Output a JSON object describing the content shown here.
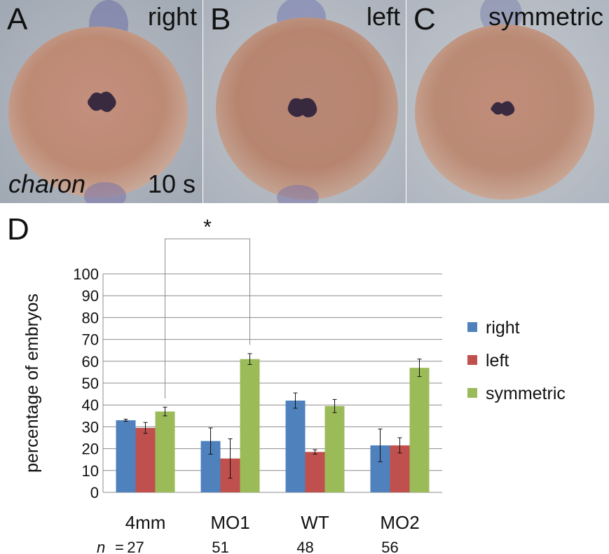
{
  "panels": [
    {
      "letter": "A",
      "label": "right",
      "stain": "charon",
      "stage": "10 s"
    },
    {
      "letter": "B",
      "label": "left"
    },
    {
      "letter": "C",
      "label": "symmetric"
    }
  ],
  "chart_data": {
    "panel_letter": "D",
    "type": "bar",
    "title": "",
    "ylabel": "percentage of embryos",
    "xlabel": "",
    "ylim": [
      0,
      100
    ],
    "yticks": [
      0,
      10,
      20,
      30,
      40,
      50,
      60,
      70,
      80,
      90,
      100
    ],
    "grid": true,
    "legend": "right",
    "categories": [
      "4mm",
      "MO1",
      "WT",
      "MO2"
    ],
    "n_prefix": "n",
    "n_values": [
      "27",
      "51",
      "48",
      "56"
    ],
    "series": [
      {
        "name": "right",
        "color": "#4f81bd",
        "values": [
          33,
          23.5,
          42,
          21.5
        ],
        "errors": [
          0.5,
          6,
          3.5,
          7.5
        ]
      },
      {
        "name": "left",
        "color": "#c0504d",
        "values": [
          29.5,
          15.5,
          18.5,
          21.5
        ],
        "errors": [
          2.5,
          9,
          1,
          3.5
        ]
      },
      {
        "name": "symmetric",
        "color": "#9bbb59",
        "values": [
          37,
          61,
          39.5,
          57
        ],
        "errors": [
          2,
          2.5,
          3,
          4
        ]
      }
    ],
    "significance": {
      "label": "*",
      "from": "4mm",
      "to": "MO1"
    }
  }
}
